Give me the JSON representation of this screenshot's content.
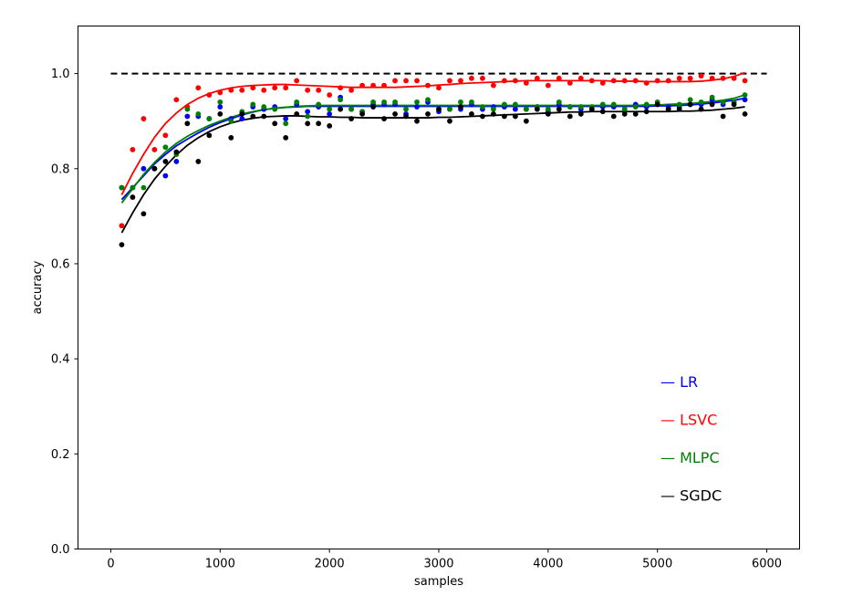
{
  "chart_data": {
    "type": "scatter",
    "xlabel": "samples",
    "ylabel": "accuracy",
    "xlim": [
      -300,
      6300
    ],
    "ylim": [
      0.0,
      1.1
    ],
    "xticks": [
      0,
      1000,
      2000,
      3000,
      4000,
      5000,
      6000
    ],
    "yticks": [
      0.0,
      0.2,
      0.4,
      0.6,
      0.8,
      1.0
    ],
    "xtick_labels": [
      "0",
      "1000",
      "2000",
      "3000",
      "4000",
      "5000",
      "6000"
    ],
    "ytick_labels": [
      "0.0",
      "0.2",
      "0.4",
      "0.6",
      "0.8",
      "1.0"
    ],
    "reference_line": {
      "y": 1.0,
      "x": [
        0,
        6000
      ],
      "style": "dashed",
      "color": "#000000"
    },
    "legend": {
      "position": "lower-right"
    },
    "x": [
      100,
      200,
      300,
      400,
      500,
      600,
      700,
      800,
      900,
      1000,
      1100,
      1200,
      1300,
      1400,
      1500,
      1600,
      1700,
      1800,
      1900,
      2000,
      2100,
      2200,
      2300,
      2400,
      2500,
      2600,
      2700,
      2800,
      2900,
      3000,
      3100,
      3200,
      3300,
      3400,
      3500,
      3600,
      3700,
      3800,
      3900,
      4000,
      4100,
      4200,
      4300,
      4400,
      4500,
      4600,
      4700,
      4800,
      4900,
      5000,
      5100,
      5200,
      5300,
      5400,
      5500,
      5600,
      5700,
      5800
    ],
    "series": [
      {
        "name": "LR",
        "color": "#0000ff",
        "values": [
          0.76,
          0.76,
          0.8,
          0.8,
          0.785,
          0.815,
          0.91,
          0.91,
          0.905,
          0.93,
          0.905,
          0.905,
          0.93,
          0.925,
          0.93,
          0.905,
          0.935,
          0.92,
          0.93,
          0.915,
          0.95,
          0.925,
          0.92,
          0.935,
          0.935,
          0.935,
          0.915,
          0.93,
          0.94,
          0.92,
          0.925,
          0.925,
          0.935,
          0.925,
          0.93,
          0.93,
          0.925,
          0.925,
          0.93,
          0.92,
          0.935,
          0.93,
          0.925,
          0.925,
          0.93,
          0.93,
          0.925,
          0.935,
          0.93,
          0.935,
          0.93,
          0.93,
          0.935,
          0.935,
          0.945,
          0.935,
          0.94,
          0.945
        ],
        "fit": [
          0.735,
          0.76,
          0.785,
          0.81,
          0.83,
          0.848,
          0.862,
          0.875,
          0.887,
          0.897,
          0.905,
          0.913,
          0.919,
          0.924,
          0.927,
          0.929,
          0.93,
          0.931,
          0.931,
          0.931,
          0.931,
          0.931,
          0.931,
          0.931,
          0.931,
          0.931,
          0.931,
          0.931,
          0.931,
          0.931,
          0.931,
          0.931,
          0.931,
          0.931,
          0.931,
          0.931,
          0.931,
          0.931,
          0.931,
          0.931,
          0.931,
          0.931,
          0.931,
          0.931,
          0.931,
          0.931,
          0.931,
          0.931,
          0.931,
          0.932,
          0.932,
          0.933,
          0.934,
          0.936,
          0.938,
          0.941,
          0.944,
          0.948
        ]
      },
      {
        "name": "LSVC",
        "color": "#ff0000",
        "values": [
          0.68,
          0.84,
          0.905,
          0.84,
          0.87,
          0.945,
          0.93,
          0.97,
          0.955,
          0.96,
          0.965,
          0.965,
          0.97,
          0.965,
          0.97,
          0.97,
          0.985,
          0.965,
          0.965,
          0.955,
          0.97,
          0.965,
          0.975,
          0.975,
          0.975,
          0.985,
          0.985,
          0.985,
          0.975,
          0.97,
          0.985,
          0.985,
          0.99,
          0.99,
          0.975,
          0.985,
          0.985,
          0.98,
          0.99,
          0.975,
          0.99,
          0.98,
          0.99,
          0.985,
          0.98,
          0.985,
          0.985,
          0.985,
          0.98,
          0.985,
          0.985,
          0.99,
          0.99,
          0.995,
          0.99,
          0.99,
          0.99,
          0.985
        ],
        "fit": [
          0.745,
          0.79,
          0.83,
          0.866,
          0.895,
          0.917,
          0.935,
          0.948,
          0.958,
          0.965,
          0.97,
          0.973,
          0.975,
          0.976,
          0.977,
          0.977,
          0.976,
          0.975,
          0.974,
          0.973,
          0.972,
          0.971,
          0.971,
          0.971,
          0.971,
          0.971,
          0.972,
          0.973,
          0.974,
          0.976,
          0.977,
          0.979,
          0.98,
          0.981,
          0.982,
          0.983,
          0.984,
          0.985,
          0.985,
          0.985,
          0.985,
          0.985,
          0.985,
          0.985,
          0.985,
          0.984,
          0.984,
          0.984,
          0.983,
          0.983,
          0.983,
          0.983,
          0.983,
          0.984,
          0.986,
          0.989,
          0.994,
          1.002
        ]
      },
      {
        "name": "MLPC",
        "color": "#008000",
        "values": [
          0.76,
          0.76,
          0.76,
          0.8,
          0.845,
          0.83,
          0.925,
          0.915,
          0.905,
          0.94,
          0.9,
          0.92,
          0.935,
          0.93,
          0.925,
          0.895,
          0.94,
          0.91,
          0.935,
          0.925,
          0.945,
          0.925,
          0.92,
          0.94,
          0.94,
          0.94,
          0.925,
          0.94,
          0.945,
          0.925,
          0.925,
          0.94,
          0.94,
          0.93,
          0.925,
          0.935,
          0.935,
          0.925,
          0.93,
          0.925,
          0.94,
          0.93,
          0.93,
          0.93,
          0.935,
          0.935,
          0.925,
          0.93,
          0.935,
          0.94,
          0.925,
          0.935,
          0.945,
          0.94,
          0.95,
          0.94,
          0.94,
          0.955
        ],
        "fit": [
          0.728,
          0.758,
          0.788,
          0.813,
          0.835,
          0.853,
          0.868,
          0.88,
          0.891,
          0.9,
          0.908,
          0.915,
          0.92,
          0.924,
          0.927,
          0.929,
          0.931,
          0.932,
          0.933,
          0.933,
          0.933,
          0.933,
          0.933,
          0.933,
          0.933,
          0.933,
          0.933,
          0.933,
          0.933,
          0.933,
          0.933,
          0.933,
          0.933,
          0.933,
          0.933,
          0.933,
          0.933,
          0.933,
          0.933,
          0.933,
          0.933,
          0.933,
          0.933,
          0.933,
          0.933,
          0.933,
          0.933,
          0.933,
          0.934,
          0.934,
          0.935,
          0.936,
          0.937,
          0.939,
          0.941,
          0.944,
          0.948,
          0.955
        ]
      },
      {
        "name": "SGDC",
        "color": "#000000",
        "values": [
          0.64,
          0.74,
          0.705,
          0.8,
          0.815,
          0.835,
          0.895,
          0.815,
          0.87,
          0.915,
          0.865,
          0.915,
          0.91,
          0.91,
          0.895,
          0.865,
          0.915,
          0.895,
          0.895,
          0.89,
          0.925,
          0.905,
          0.915,
          0.93,
          0.905,
          0.915,
          0.91,
          0.9,
          0.915,
          0.925,
          0.9,
          0.93,
          0.915,
          0.91,
          0.915,
          0.91,
          0.91,
          0.9,
          0.925,
          0.915,
          0.925,
          0.91,
          0.915,
          0.925,
          0.92,
          0.91,
          0.915,
          0.915,
          0.92,
          0.935,
          0.925,
          0.925,
          0.935,
          0.925,
          0.935,
          0.91,
          0.935,
          0.915
        ],
        "fit": [
          0.665,
          0.707,
          0.745,
          0.778,
          0.805,
          0.829,
          0.849,
          0.865,
          0.878,
          0.888,
          0.896,
          0.902,
          0.906,
          0.909,
          0.91,
          0.911,
          0.911,
          0.91,
          0.909,
          0.909,
          0.908,
          0.908,
          0.907,
          0.907,
          0.907,
          0.907,
          0.907,
          0.907,
          0.907,
          0.908,
          0.908,
          0.909,
          0.91,
          0.911,
          0.912,
          0.913,
          0.914,
          0.915,
          0.916,
          0.917,
          0.918,
          0.919,
          0.919,
          0.92,
          0.92,
          0.92,
          0.92,
          0.92,
          0.92,
          0.92,
          0.92,
          0.921,
          0.921,
          0.922,
          0.923,
          0.925,
          0.927,
          0.93
        ]
      }
    ]
  }
}
